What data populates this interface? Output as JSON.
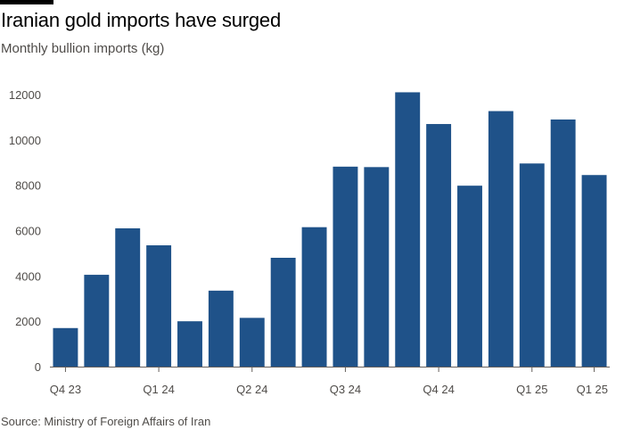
{
  "header": {
    "title": "Iranian gold imports have surged",
    "subtitle": "Monthly bullion imports (kg)"
  },
  "footer": {
    "source": "Source: Ministry of Foreign Affairs of Iran"
  },
  "colors": {
    "bar": "#1f5289",
    "axis": "#66605c",
    "text": "#4f4c49"
  },
  "chart_data": {
    "type": "bar",
    "title": "Iranian gold imports have surged",
    "subtitle": "Monthly bullion imports (kg)",
    "xlabel": "",
    "ylabel": "",
    "ylim": [
      0,
      12000
    ],
    "yticks": [
      0,
      2000,
      4000,
      6000,
      8000,
      10000,
      12000
    ],
    "grid": false,
    "categories": [
      "Q4 23",
      "",
      "",
      "Q1 24",
      "",
      "",
      "Q2 24",
      "",
      "",
      "Q3 24",
      "",
      "",
      "Q4 24",
      "",
      "",
      "Q1 25",
      "",
      "Q1 25"
    ],
    "values": [
      1700,
      4050,
      6100,
      5350,
      2000,
      3350,
      2150,
      4800,
      6150,
      8820,
      8800,
      12100,
      10700,
      7980,
      11270,
      8960,
      10900,
      8450
    ],
    "xtick_labels": [
      {
        "index": 0,
        "label": "Q4 23"
      },
      {
        "index": 3,
        "label": "Q1 24"
      },
      {
        "index": 6,
        "label": "Q2 24"
      },
      {
        "index": 9,
        "label": "Q3 24"
      },
      {
        "index": 12,
        "label": "Q4 24"
      },
      {
        "index": 15,
        "label": "Q1 25"
      },
      {
        "index": 17,
        "label": "Q1 25"
      }
    ],
    "source": "Source: Ministry of Foreign Affairs of Iran"
  }
}
